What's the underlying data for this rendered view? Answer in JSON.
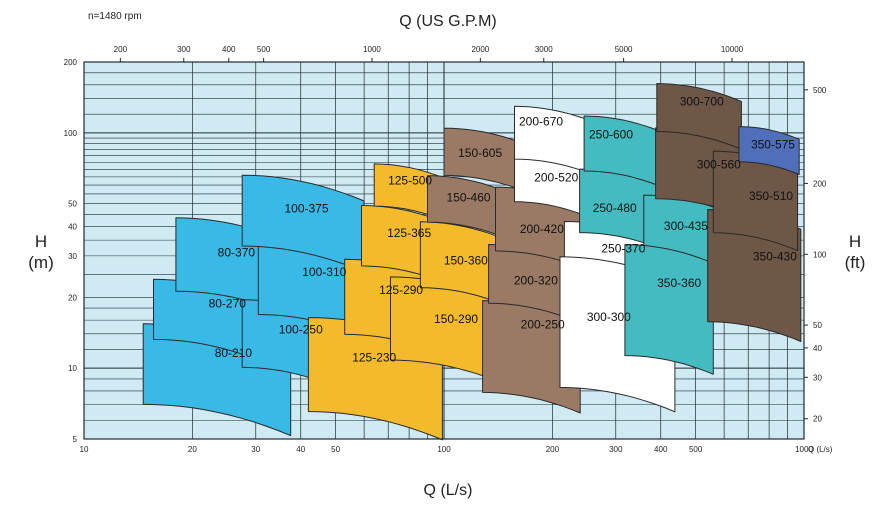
{
  "chart_data": {
    "type": "area",
    "title": "Q (US G.P.M)",
    "note": "n=1480 rpm",
    "xlabel": "Q (L/s)",
    "ylabel_left": [
      "H",
      "(m)"
    ],
    "ylabel_right": [
      "H",
      "(ft)"
    ],
    "x_scale": "log",
    "y_scale": "log",
    "xlim": [
      10,
      1000
    ],
    "ylim": [
      5,
      200
    ],
    "grid": true,
    "x_ticks": [
      "10",
      "20",
      "30",
      "40",
      "50",
      "100",
      "200",
      "300",
      "400",
      "500",
      "1000"
    ],
    "x_tick_values": [
      10,
      20,
      30,
      40,
      50,
      100,
      200,
      300,
      400,
      500,
      1000
    ],
    "x_end_label": "Q (L/s)",
    "y_ticks": [
      "5",
      "10",
      "20",
      "30",
      "40",
      "50",
      "100",
      "200"
    ],
    "y_tick_values": [
      5,
      10,
      20,
      30,
      40,
      50,
      100,
      200
    ],
    "top_ticks": [
      "200",
      "300",
      "400",
      "500",
      "1000",
      "2000",
      "3000",
      "5000",
      "10000"
    ],
    "top_tick_values": [
      200,
      300,
      400,
      500,
      1000,
      2000,
      3000,
      5000,
      10000
    ],
    "right_ticks": [
      "20",
      "30",
      "40",
      "50",
      "100",
      "200",
      "500"
    ],
    "right_tick_values": [
      20,
      30,
      40,
      50,
      100,
      200,
      500
    ],
    "colors": {
      "background": "#cfeaf2",
      "grid": "#1f2a36",
      "blue": "#39b9e6",
      "yellow": "#f3ba2b",
      "tan": "#9b7a65",
      "white": "#ffffff",
      "teal": "#43bbc0",
      "darkbrown": "#6e5747",
      "navy": "#4f6fba"
    },
    "regions": [
      {
        "label": "80-210",
        "color": "blue",
        "q": [
          14.6,
          37.5
        ],
        "h": [
          6.5,
          14.3
        ],
        "label_at": [
          26,
          11.6
        ]
      },
      {
        "label": "80-270",
        "color": "blue",
        "q": [
          15.6,
          32
        ],
        "h": [
          12.5,
          22.5
        ],
        "label_at": [
          25,
          18.8
        ]
      },
      {
        "label": "80-370",
        "color": "blue",
        "q": [
          18,
          37.5
        ],
        "h": [
          20,
          41
        ],
        "label_at": [
          26.5,
          31
        ]
      },
      {
        "label": "100-250",
        "color": "blue",
        "q": [
          27.5,
          50
        ],
        "h": [
          9.6,
          18.6
        ],
        "label_at": [
          40,
          14.6
        ]
      },
      {
        "label": "100-310",
        "color": "blue",
        "q": [
          30.5,
          60
        ],
        "h": [
          16,
          32
        ],
        "label_at": [
          46.5,
          25.6
        ]
      },
      {
        "label": "100-375",
        "color": "blue",
        "q": [
          27.5,
          60
        ],
        "h": [
          31,
          62
        ],
        "label_at": [
          41.5,
          47.6
        ]
      },
      {
        "label": "125-230",
        "color": "yellow",
        "q": [
          42,
          99
        ],
        "h": [
          6.1,
          15.3
        ],
        "label_at": [
          64,
          11.1
        ]
      },
      {
        "label": "125-290",
        "color": "yellow",
        "q": [
          53,
          102
        ],
        "h": [
          13.2,
          27.5
        ],
        "label_at": [
          76,
          21.5
        ]
      },
      {
        "label": "125-365",
        "color": "yellow",
        "q": [
          59,
          102
        ],
        "h": [
          26,
          47
        ],
        "label_at": [
          80,
          37.5
        ]
      },
      {
        "label": "125-500",
        "color": "yellow",
        "q": [
          64,
          102
        ],
        "h": [
          47,
          71
        ],
        "label_at": [
          80.5,
          62.6
        ]
      },
      {
        "label": "150-290",
        "color": "yellow",
        "q": [
          71,
          148
        ],
        "h": [
          10.2,
          23
        ],
        "label_at": [
          108,
          16.2
        ]
      },
      {
        "label": "150-360",
        "color": "yellow",
        "q": [
          86,
          150
        ],
        "h": [
          21,
          40
        ],
        "label_at": [
          115,
          28.7
        ]
      },
      {
        "label": "150-460",
        "color": "tan",
        "q": [
          90,
          152
        ],
        "h": [
          40,
          63
        ],
        "label_at": [
          117,
          53
        ]
      },
      {
        "label": "150-605",
        "color": "tan",
        "q": [
          100,
          175
        ],
        "h": [
          63,
          100
        ],
        "label_at": [
          126,
          82
        ]
      },
      {
        "label": "200-250",
        "color": "tan",
        "q": [
          128,
          239
        ],
        "h": [
          7.5,
          18.4
        ],
        "label_at": [
          188,
          15.3
        ]
      },
      {
        "label": "200-320",
        "color": "tan",
        "q": [
          133,
          237
        ],
        "h": [
          18,
          32
        ],
        "label_at": [
          180,
          23.6
        ]
      },
      {
        "label": "200-420",
        "color": "tan",
        "q": [
          139,
          252
        ],
        "h": [
          30,
          56
        ],
        "label_at": [
          187,
          39.1
        ]
      },
      {
        "label": "200-520",
        "color": "white",
        "q": [
          157,
          255
        ],
        "h": [
          49,
          78
        ],
        "label_at": [
          205,
          64.5
        ]
      },
      {
        "label": "200-670",
        "color": "white",
        "q": [
          157,
          270
        ],
        "h": [
          74,
          124
        ],
        "label_at": [
          186,
          112
        ]
      },
      {
        "label": "250-370",
        "color": "white",
        "q": [
          216,
          394
        ],
        "h": [
          22,
          40
        ],
        "label_at": [
          315,
          32.2
        ]
      },
      {
        "label": "250-480",
        "color": "teal",
        "q": [
          238,
          415
        ],
        "h": [
          36,
          67
        ],
        "label_at": [
          298,
          48
        ]
      },
      {
        "label": "250-600",
        "color": "teal",
        "q": [
          245,
          410
        ],
        "h": [
          66,
          113
        ],
        "label_at": [
          291,
          98.5
        ]
      },
      {
        "label": "300-300",
        "color": "white",
        "q": [
          210,
          438
        ],
        "h": [
          7.8,
          28
        ],
        "label_at": [
          287,
          16.5
        ]
      },
      {
        "label": "300-435",
        "color": "teal",
        "q": [
          359,
          620
        ],
        "h": [
          27,
          52
        ],
        "label_at": [
          470,
          40.2
        ]
      },
      {
        "label": "350-360",
        "color": "teal",
        "q": [
          318,
          560
        ],
        "h": [
          10.8,
          32
        ],
        "label_at": [
          450,
          23
        ]
      },
      {
        "label": "300-560",
        "color": "darkbrown",
        "q": [
          387,
          700
        ],
        "h": [
          50,
          100
        ],
        "label_at": [
          580,
          73.4
        ]
      },
      {
        "label": "300-700",
        "color": "darkbrown",
        "q": [
          390,
          670
        ],
        "h": [
          97,
          155
        ],
        "label_at": [
          520,
          136
        ]
      },
      {
        "label": "350-430",
        "color": "darkbrown",
        "q": [
          540,
          980
        ],
        "h": [
          15,
          45
        ],
        "label_at": [
          830,
          29.8
        ]
      },
      {
        "label": "350-510",
        "color": "darkbrown",
        "q": [
          560,
          960
        ],
        "h": [
          36,
          80
        ],
        "label_at": [
          810,
          53.9
        ]
      },
      {
        "label": "350-575",
        "color": "navy",
        "q": [
          660,
          970
        ],
        "h": [
          73,
          103
        ],
        "label_at": [
          820,
          89
        ]
      }
    ]
  }
}
